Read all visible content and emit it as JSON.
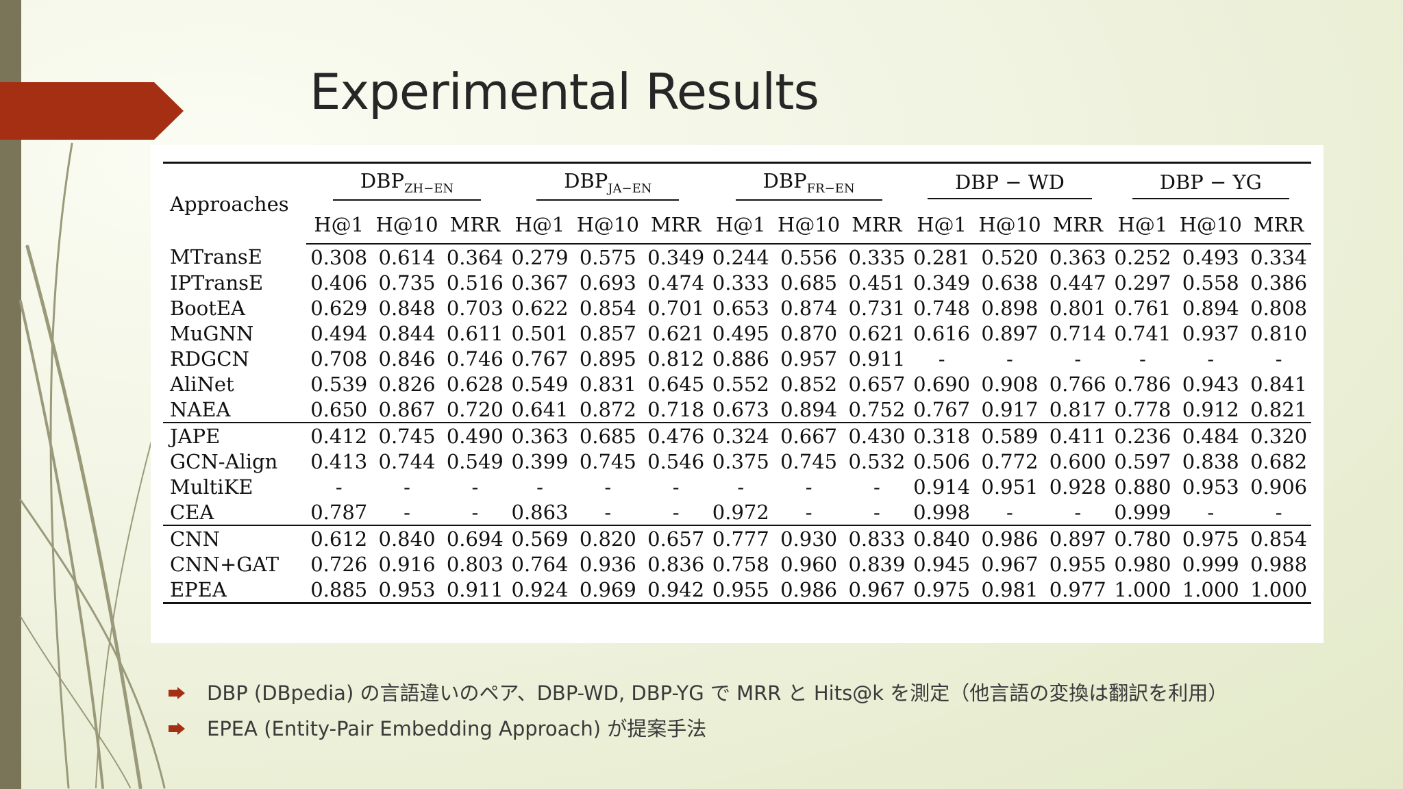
{
  "slide": {
    "title": "Experimental Results",
    "accent_color": "#a52f12",
    "bar_color": "#7a7558"
  },
  "table": {
    "approaches_header": "Approaches",
    "groups": [
      {
        "base": "DBP",
        "sub": "ZH−EN"
      },
      {
        "base": "DBP",
        "sub": "JA−EN"
      },
      {
        "base": "DBP",
        "sub": "FR−EN"
      },
      {
        "base": "DBP − WD",
        "sub": ""
      },
      {
        "base": "DBP − YG",
        "sub": ""
      }
    ],
    "metrics": [
      "H@1",
      "H@10",
      "MRR"
    ],
    "sections": [
      [
        {
          "name": "MTransE",
          "values": [
            "0.308",
            "0.614",
            "0.364",
            "0.279",
            "0.575",
            "0.349",
            "0.244",
            "0.556",
            "0.335",
            "0.281",
            "0.520",
            "0.363",
            "0.252",
            "0.493",
            "0.334"
          ],
          "bold": []
        },
        {
          "name": "IPTransE",
          "values": [
            "0.406",
            "0.735",
            "0.516",
            "0.367",
            "0.693",
            "0.474",
            "0.333",
            "0.685",
            "0.451",
            "0.349",
            "0.638",
            "0.447",
            "0.297",
            "0.558",
            "0.386"
          ],
          "bold": []
        },
        {
          "name": "BootEA",
          "values": [
            "0.629",
            "0.848",
            "0.703",
            "0.622",
            "0.854",
            "0.701",
            "0.653",
            "0.874",
            "0.731",
            "0.748",
            "0.898",
            "0.801",
            "0.761",
            "0.894",
            "0.808"
          ],
          "bold": []
        },
        {
          "name": "MuGNN",
          "values": [
            "0.494",
            "0.844",
            "0.611",
            "0.501",
            "0.857",
            "0.621",
            "0.495",
            "0.870",
            "0.621",
            "0.616",
            "0.897",
            "0.714",
            "0.741",
            "0.937",
            "0.810"
          ],
          "bold": []
        },
        {
          "name": "RDGCN",
          "values": [
            "0.708",
            "0.846",
            "0.746",
            "0.767",
            "0.895",
            "0.812",
            "0.886",
            "0.957",
            "0.911",
            "-",
            "-",
            "-",
            "-",
            "-",
            "-"
          ],
          "bold": []
        },
        {
          "name": "AliNet",
          "values": [
            "0.539",
            "0.826",
            "0.628",
            "0.549",
            "0.831",
            "0.645",
            "0.552",
            "0.852",
            "0.657",
            "0.690",
            "0.908",
            "0.766",
            "0.786",
            "0.943",
            "0.841"
          ],
          "bold": []
        },
        {
          "name": "NAEA",
          "values": [
            "0.650",
            "0.867",
            "0.720",
            "0.641",
            "0.872",
            "0.718",
            "0.673",
            "0.894",
            "0.752",
            "0.767",
            "0.917",
            "0.817",
            "0.778",
            "0.912",
            "0.821"
          ],
          "bold": []
        }
      ],
      [
        {
          "name": "JAPE",
          "values": [
            "0.412",
            "0.745",
            "0.490",
            "0.363",
            "0.685",
            "0.476",
            "0.324",
            "0.667",
            "0.430",
            "0.318",
            "0.589",
            "0.411",
            "0.236",
            "0.484",
            "0.320"
          ],
          "bold": []
        },
        {
          "name": "GCN-Align",
          "values": [
            "0.413",
            "0.744",
            "0.549",
            "0.399",
            "0.745",
            "0.546",
            "0.375",
            "0.745",
            "0.532",
            "0.506",
            "0.772",
            "0.600",
            "0.597",
            "0.838",
            "0.682"
          ],
          "bold": []
        },
        {
          "name": "MultiKE",
          "values": [
            "-",
            "-",
            "-",
            "-",
            "-",
            "-",
            "-",
            "-",
            "-",
            "0.914",
            "0.951",
            "0.928",
            "0.880",
            "0.953",
            "0.906"
          ],
          "bold": []
        },
        {
          "name": "CEA",
          "values": [
            "0.787",
            "-",
            "-",
            "0.863",
            "-",
            "-",
            "0.972",
            "-",
            "-",
            "0.998",
            "-",
            "-",
            "0.999",
            "-",
            "-"
          ],
          "bold": [
            6,
            9,
            12
          ]
        }
      ],
      [
        {
          "name": "CNN",
          "values": [
            "0.612",
            "0.840",
            "0.694",
            "0.569",
            "0.820",
            "0.657",
            "0.777",
            "0.930",
            "0.833",
            "0.840",
            "0.986",
            "0.897",
            "0.780",
            "0.975",
            "0.854"
          ],
          "bold": []
        },
        {
          "name": "CNN+GAT",
          "values": [
            "0.726",
            "0.916",
            "0.803",
            "0.764",
            "0.936",
            "0.836",
            "0.758",
            "0.960",
            "0.839",
            "0.945",
            "0.967",
            "0.955",
            "0.980",
            "0.999",
            "0.988"
          ],
          "bold": []
        },
        {
          "name": "EPEA",
          "name_bold": true,
          "values": [
            "0.885",
            "0.953",
            "0.911",
            "0.924",
            "0.969",
            "0.942",
            "0.955",
            "0.986",
            "0.967",
            "0.975",
            "0.981",
            "0.977",
            "1.000",
            "1.000",
            "1.000"
          ],
          "bold": [
            0,
            1,
            2,
            3,
            4,
            5,
            7,
            8,
            10,
            11,
            12,
            13,
            14
          ]
        }
      ]
    ]
  },
  "bullets": [
    "DBP (DBpedia) の言語違いのペア、DBP-WD, DBP-YG で MRR と Hits@k を測定（他言語の変換は翻訳を利用）",
    "EPEA (Entity-Pair Embedding Approach) が提案手法"
  ]
}
